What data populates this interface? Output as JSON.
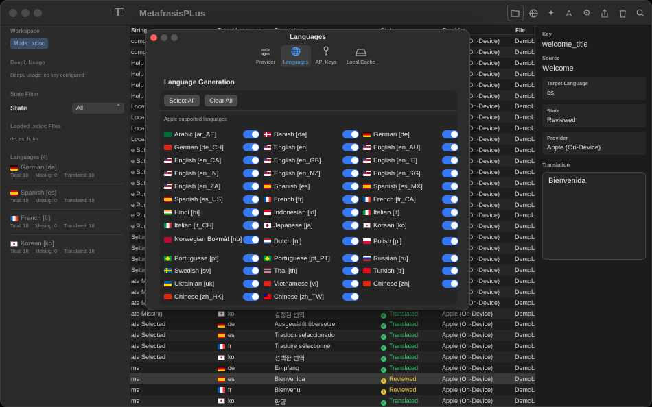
{
  "app": {
    "title": "MetafrasisPLus"
  },
  "toolbar": {
    "icons": [
      "folder-open-icon",
      "globe-icon",
      "sparkles-icon",
      "text-format-icon",
      "gear-icon",
      "share-icon",
      "trash-icon",
      "search-icon"
    ]
  },
  "sidebar": {
    "workspace_label": "Workspace",
    "mode_badge": "Mode: .xcloc",
    "deepl_label": "DeepL Usage",
    "deepl_status": "DeepL usage: no key configured",
    "state_filter_label": "State Filter",
    "state_label": "State",
    "state_value": "All",
    "loaded_label": "Loaded .xcloc Files",
    "loaded_files": "de, es, fr, ko",
    "languages_label": "Languages (4)",
    "languages": [
      {
        "name": "German [de]",
        "flag": "de",
        "total": "Total: 10",
        "missing": "Missing: 0",
        "translated": "Translated: 10"
      },
      {
        "name": "Spanish [es]",
        "flag": "es",
        "total": "Total: 10",
        "missing": "Missing: 0",
        "translated": "Translated: 10"
      },
      {
        "name": "French [fr]",
        "flag": "fr",
        "total": "Total: 10",
        "missing": "Missing: 0",
        "translated": "Translated: 10"
      },
      {
        "name": "Korean [ko]",
        "flag": "ko",
        "total": "Total: 10",
        "missing": "Missing: 0",
        "translated": "Translated: 10"
      }
    ]
  },
  "table": {
    "headers": {
      "string": "String",
      "target": "Target Language",
      "translation": "Translation",
      "state": "State",
      "provider": "Provider",
      "file": "File"
    },
    "rows": [
      {
        "key": "comp",
        "provider": "le (On-Device)",
        "file": "DemoL"
      },
      {
        "key": "comp",
        "provider": "le (On-Device)",
        "file": "DemoL"
      },
      {
        "key": "Help",
        "provider": "le (On-Device)",
        "file": "DemoL"
      },
      {
        "key": "Help",
        "provider": "le (On-Device)",
        "file": "DemoL"
      },
      {
        "key": "Help",
        "provider": "le (On-Device)",
        "file": "DemoL"
      },
      {
        "key": "Help",
        "provider": "le (On-Device)",
        "file": "DemoL"
      },
      {
        "key": "Local",
        "provider": "le (On-Device)",
        "file": "DemoL"
      },
      {
        "key": "Local",
        "provider": "le (On-Device)",
        "file": "DemoL"
      },
      {
        "key": "Local",
        "provider": "le (On-Device)",
        "file": "DemoL"
      },
      {
        "key": "Local",
        "provider": "le (On-Device)",
        "file": "DemoL"
      },
      {
        "key": "e Sub",
        "provider": "le (On-Device)",
        "file": "DemoL"
      },
      {
        "key": "e Sub",
        "provider": "le (On-Device)",
        "file": "DemoL"
      },
      {
        "key": "e Sub",
        "provider": "le (On-Device)",
        "file": "DemoL"
      },
      {
        "key": "e Sub",
        "provider": "le (On-Device)",
        "file": "DemoL"
      },
      {
        "key": "e Purc",
        "provider": "le (On-Device)",
        "file": "DemoL"
      },
      {
        "key": "e Purc",
        "provider": "le (On-Device)",
        "file": "DemoL"
      },
      {
        "key": "e Purc",
        "provider": "le (On-Device)",
        "file": "DemoL"
      },
      {
        "key": "e Purc",
        "provider": "le (On-Device)",
        "file": "DemoL"
      },
      {
        "key": "Setting",
        "provider": "le (On-Device)",
        "file": "DemoL"
      },
      {
        "key": "Setting",
        "provider": "le (On-Device)",
        "file": "DemoL"
      },
      {
        "key": "Setting",
        "provider": "le (On-Device)",
        "file": "DemoL"
      },
      {
        "key": "Setting",
        "provider": "le (On-Device)",
        "file": "DemoL"
      },
      {
        "key": "ate Mis",
        "provider": "le (On-Device)",
        "file": "DemoL"
      },
      {
        "key": "ate Mis",
        "provider": "le (On-Device)",
        "file": "DemoL"
      },
      {
        "key": "ate Mis",
        "provider": "le (On-Device)",
        "file": "DemoL"
      },
      {
        "key": "ate Missing",
        "lang": "ko",
        "flag": "ko",
        "translation": "결정된 번역",
        "state": "Translated",
        "provider": "Apple (On-Device)",
        "file": "DemoL"
      },
      {
        "key": "ate Selected",
        "lang": "de",
        "flag": "de",
        "translation": "Ausgewählt übersetzen",
        "state": "Translated",
        "provider": "Apple (On-Device)",
        "file": "DemoL"
      },
      {
        "key": "ate Selected",
        "lang": "es",
        "flag": "es",
        "translation": "Traducir seleccionado",
        "state": "Translated",
        "provider": "Apple (On-Device)",
        "file": "DemoL"
      },
      {
        "key": "ate Selected",
        "lang": "fr",
        "flag": "fr",
        "translation": "Traduire sélectionné",
        "state": "Translated",
        "provider": "Apple (On-Device)",
        "file": "DemoL"
      },
      {
        "key": "ate Selected",
        "lang": "ko",
        "flag": "ko",
        "translation": "선택한 번역",
        "state": "Translated",
        "provider": "Apple (On-Device)",
        "file": "DemoL"
      },
      {
        "key": "me",
        "lang": "de",
        "flag": "de",
        "translation": "Empfang",
        "state": "Translated",
        "provider": "Apple (On-Device)",
        "file": "DemoL"
      },
      {
        "key": "me",
        "lang": "es",
        "flag": "es",
        "translation": "Bienvenida",
        "state": "Reviewed",
        "provider": "Apple (On-Device)",
        "file": "DemoL"
      },
      {
        "key": "me",
        "lang": "fr",
        "flag": "fr",
        "translation": "Bienvenu",
        "state": "Reviewed",
        "provider": "Apple (On-Device)",
        "file": "DemoL"
      },
      {
        "key": "me",
        "lang": "ko",
        "flag": "ko",
        "translation": "환영",
        "state": "Translated",
        "provider": "Apple (On-Device)",
        "file": "DemoL"
      }
    ]
  },
  "inspector": {
    "key_label": "Key",
    "key_value": "welcome_title",
    "source_label": "Source",
    "source_value": "Welcome",
    "target_label": "Target Language",
    "target_value": "es",
    "state_label": "State",
    "state_value": "Reviewed",
    "provider_label": "Provider",
    "provider_value": "Apple (On-Device)",
    "translation_label": "Translation",
    "translation_value": "Bienvenida"
  },
  "modal": {
    "title": "Languages",
    "tabs": [
      {
        "label": "Provider",
        "icon": "sliders-icon"
      },
      {
        "label": "Languages",
        "icon": "globe-icon",
        "active": true
      },
      {
        "label": "API Keys",
        "icon": "key-icon"
      },
      {
        "label": "Local Cache",
        "icon": "drive-icon"
      }
    ],
    "section_title": "Language Generation",
    "select_all": "Select All",
    "clear_all": "Clear All",
    "apple_label": "Apple-supported languages",
    "languages": [
      {
        "label": "Arabic [ar_AE]",
        "flag": "sa",
        "on": true
      },
      {
        "label": "Danish [da]",
        "flag": "dk",
        "on": true
      },
      {
        "label": "German [de]",
        "flag": "de",
        "on": true
      },
      {
        "label": "German [de_CH]",
        "flag": "ch",
        "on": true
      },
      {
        "label": "English [en]",
        "flag": "us",
        "on": true
      },
      {
        "label": "English [en_AU]",
        "flag": "us",
        "on": true
      },
      {
        "label": "English [en_CA]",
        "flag": "us",
        "on": true
      },
      {
        "label": "English [en_GB]",
        "flag": "us",
        "on": true
      },
      {
        "label": "English [en_IE]",
        "flag": "us",
        "on": true
      },
      {
        "label": "English [en_IN]",
        "flag": "us",
        "on": true
      },
      {
        "label": "English [en_NZ]",
        "flag": "us",
        "on": true
      },
      {
        "label": "English [en_SG]",
        "flag": "us",
        "on": true
      },
      {
        "label": "English [en_ZA]",
        "flag": "us",
        "on": true
      },
      {
        "label": "Spanish [es]",
        "flag": "es",
        "on": true
      },
      {
        "label": "Spanish [es_MX]",
        "flag": "es",
        "on": true
      },
      {
        "label": "Spanish [es_US]",
        "flag": "es",
        "on": true
      },
      {
        "label": "French [fr]",
        "flag": "fr",
        "on": true
      },
      {
        "label": "French [fr_CA]",
        "flag": "fr",
        "on": true
      },
      {
        "label": "Hindi [hi]",
        "flag": "in",
        "on": true
      },
      {
        "label": "Indonesian [id]",
        "flag": "id",
        "on": true
      },
      {
        "label": "Italian [it]",
        "flag": "it",
        "on": true
      },
      {
        "label": "Italian [it_CH]",
        "flag": "it",
        "on": true
      },
      {
        "label": "Japanese [ja]",
        "flag": "jp",
        "on": true
      },
      {
        "label": "Korean [ko]",
        "flag": "ko",
        "on": true
      },
      {
        "label": "Norwegian Bokmål [nb]",
        "flag": "no",
        "on": true
      },
      {
        "label": "Dutch [nl]",
        "flag": "nl",
        "on": true
      },
      {
        "label": "Polish [pl]",
        "flag": "pl",
        "on": true
      },
      {
        "label": "Portuguese [pt]",
        "flag": "br",
        "on": true
      },
      {
        "label": "Portuguese [pt_PT]",
        "flag": "br",
        "on": true
      },
      {
        "label": "Russian [ru]",
        "flag": "ru",
        "on": true
      },
      {
        "label": "Swedish [sv]",
        "flag": "se",
        "on": true
      },
      {
        "label": "Thai [th]",
        "flag": "th",
        "on": true
      },
      {
        "label": "Turkish [tr]",
        "flag": "tr",
        "on": true
      },
      {
        "label": "Ukrainian [uk]",
        "flag": "ua",
        "on": true
      },
      {
        "label": "Vietnamese [vi]",
        "flag": "vn",
        "on": true
      },
      {
        "label": "Chinese [zh]",
        "flag": "cn",
        "on": true
      },
      {
        "label": "Chinese [zh_HK]",
        "flag": "hk",
        "on": true
      },
      {
        "label": "Chinese [zh_TW]",
        "flag": "tw",
        "on": true
      }
    ]
  },
  "colors": {
    "accent": "#3478f6",
    "translated": "#3ec46d",
    "reviewed": "#e8c23a",
    "close": "#ff5f57"
  }
}
